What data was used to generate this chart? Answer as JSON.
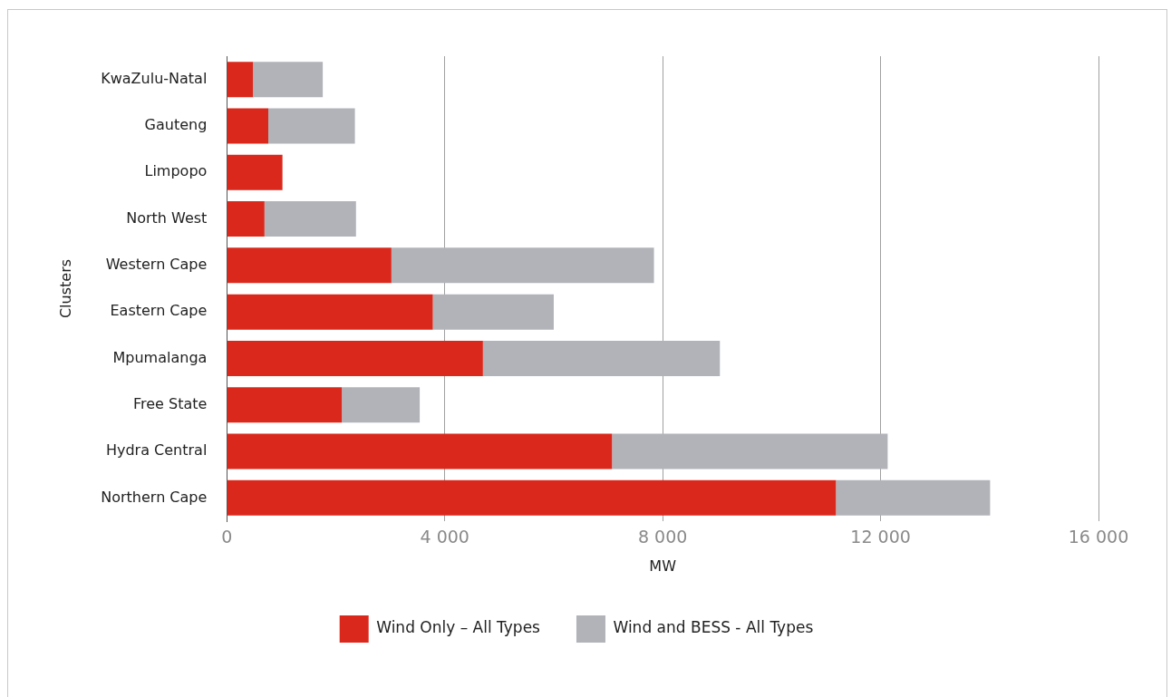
{
  "chart_data": {
    "type": "bar",
    "orientation": "horizontal",
    "stacked": true,
    "xlabel": "MW",
    "ylabel": "Clusters",
    "categories": [
      "KwaZulu-Natal",
      "Gauteng",
      "Limpopo",
      "North West",
      "Western Cape",
      "Eastern Cape",
      "Mpumalanga",
      "Free State",
      "Hydra Central",
      "Northern Cape"
    ],
    "series": [
      {
        "name": "Wind Only – All Types",
        "color": "#da291c",
        "values": [
          480,
          760,
          1020,
          690,
          3020,
          3780,
          4700,
          2110,
          7070,
          11180
        ]
      },
      {
        "name": "Wind and BESS - All Types",
        "color": "#b1b3b9",
        "values": [
          1280,
          1590,
          0,
          1680,
          4820,
          2220,
          4350,
          1430,
          5060,
          2830
        ]
      }
    ],
    "xlim": [
      0,
      16000
    ],
    "xticks": [
      0,
      {
        "value": 4000,
        "label": "4 000"
      },
      {
        "value": 8000,
        "label": "8 000"
      },
      {
        "value": 12000,
        "label": "12 000"
      },
      {
        "value": 16000,
        "label": "16 000"
      }
    ],
    "grid": "x",
    "legend": "bottom"
  }
}
